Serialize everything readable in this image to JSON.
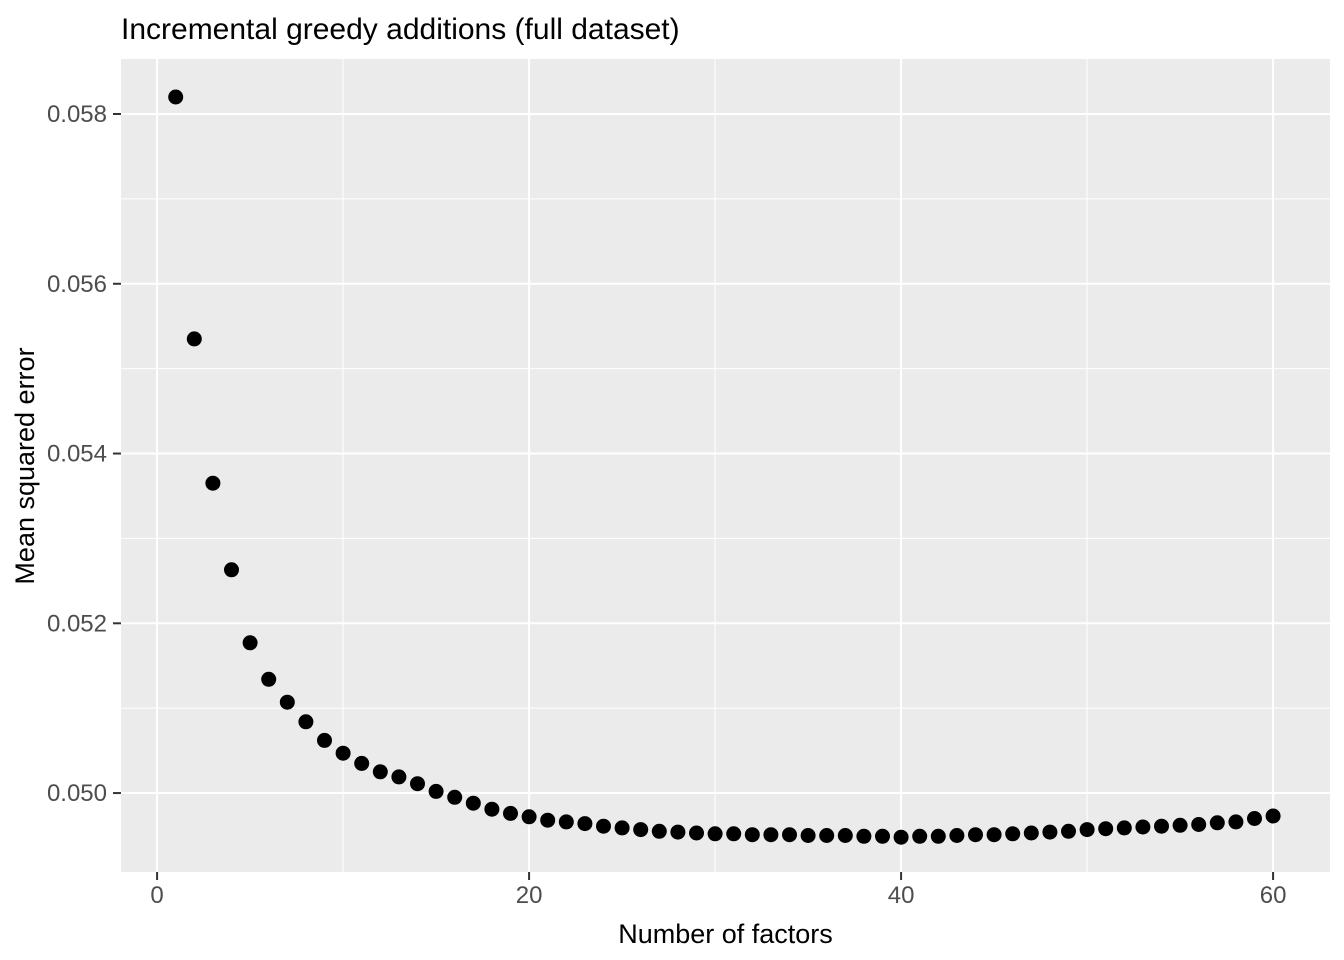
{
  "chart_data": {
    "type": "scatter",
    "title": "Incremental greedy additions (full dataset)",
    "xlabel": "Number of factors",
    "ylabel": "Mean squared error",
    "x": [
      1,
      2,
      3,
      4,
      5,
      6,
      7,
      8,
      9,
      10,
      11,
      12,
      13,
      14,
      15,
      16,
      17,
      18,
      19,
      20,
      21,
      22,
      23,
      24,
      25,
      26,
      27,
      28,
      29,
      30,
      31,
      32,
      33,
      34,
      35,
      36,
      37,
      38,
      39,
      40,
      41,
      42,
      43,
      44,
      45,
      46,
      47,
      48,
      49,
      50,
      51,
      52,
      53,
      54,
      55,
      56,
      57,
      58,
      59,
      60
    ],
    "y": [
      0.0582,
      0.05535,
      0.05365,
      0.05263,
      0.05177,
      0.05134,
      0.05107,
      0.05084,
      0.05062,
      0.05047,
      0.05035,
      0.05025,
      0.05019,
      0.05011,
      0.05002,
      0.04995,
      0.04988,
      0.04981,
      0.04976,
      0.04972,
      0.04968,
      0.04966,
      0.04964,
      0.04961,
      0.04959,
      0.04957,
      0.04955,
      0.04954,
      0.04953,
      0.04952,
      0.04952,
      0.04951,
      0.04951,
      0.04951,
      0.0495,
      0.0495,
      0.0495,
      0.04949,
      0.04949,
      0.04948,
      0.04949,
      0.04949,
      0.0495,
      0.04951,
      0.04951,
      0.04952,
      0.04953,
      0.04954,
      0.04955,
      0.04957,
      0.04958,
      0.04959,
      0.0496,
      0.04961,
      0.04962,
      0.04963,
      0.04965,
      0.04966,
      0.0497,
      0.04973
    ],
    "xlim": [
      -1.94,
      63.06
    ],
    "ylim": [
      0.04907,
      0.058648
    ],
    "x_major_ticks": [
      0,
      20,
      40,
      60
    ],
    "x_tick_labels": [
      "0",
      "20",
      "40",
      "60"
    ],
    "x_minor_ticks": [
      10,
      30,
      50
    ],
    "y_major_ticks": [
      0.05,
      0.052,
      0.054,
      0.056,
      0.058
    ],
    "y_tick_labels": [
      "0.050",
      "0.052",
      "0.054",
      "0.056",
      "0.058"
    ],
    "y_minor_ticks": [
      0.051,
      0.053,
      0.055,
      0.057
    ],
    "grid": true,
    "legend": false,
    "colors": {
      "point": "#000000",
      "panel_background": "#EBEBEB",
      "gridline": "#FFFFFF",
      "tick_mark": "#333333",
      "tick_label": "#4D4D4D",
      "axis_title": "#000000",
      "plot_title": "#000000",
      "figure_background": "#FFFFFF"
    }
  }
}
